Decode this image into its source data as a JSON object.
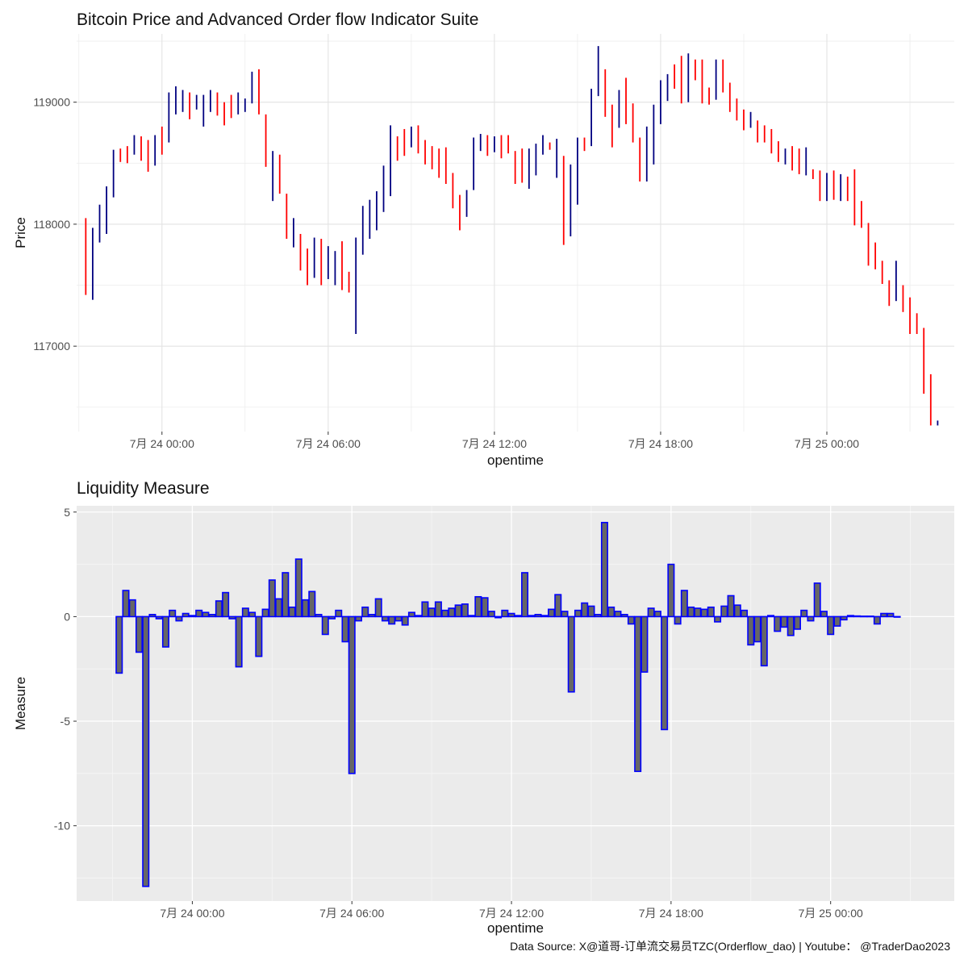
{
  "chart_data": [
    {
      "type": "ohlc",
      "title": "Bitcoin Price and Advanced Order flow Indicator Suite",
      "xlabel": "opentime",
      "ylabel": "Price",
      "x_tick_labels": [
        "7月 24 00:00",
        "7月 24 06:00",
        "7月 24 12:00",
        "7月 24 18:00",
        "7月 25 00:00"
      ],
      "x_tick_hours": [
        0,
        6,
        12,
        18,
        24
      ],
      "x_range_hours": [
        -3.08,
        28.6
      ],
      "bar_start_hours": -2.75,
      "bar_interval_hours": 0.25,
      "y_tick_labels": [
        "117000",
        "118000",
        "119000"
      ],
      "y_ticks": [
        117000,
        118000,
        119000
      ],
      "ylim": [
        116300,
        119560
      ],
      "grid": true,
      "colors": {
        "up": "#000080",
        "down": "#ff0000"
      },
      "bars": [
        {
          "high": 118050,
          "low": 117420,
          "dir": "down"
        },
        {
          "high": 117970,
          "low": 117380,
          "dir": "up"
        },
        {
          "high": 118160,
          "low": 117850,
          "dir": "up"
        },
        {
          "high": 118310,
          "low": 117920,
          "dir": "up"
        },
        {
          "high": 118610,
          "low": 118220,
          "dir": "up"
        },
        {
          "high": 118620,
          "low": 118510,
          "dir": "down"
        },
        {
          "high": 118640,
          "low": 118500,
          "dir": "down"
        },
        {
          "high": 118730,
          "low": 118570,
          "dir": "up"
        },
        {
          "high": 118720,
          "low": 118520,
          "dir": "down"
        },
        {
          "high": 118690,
          "low": 118430,
          "dir": "down"
        },
        {
          "high": 118730,
          "low": 118480,
          "dir": "up"
        },
        {
          "high": 118800,
          "low": 118570,
          "dir": "down"
        },
        {
          "high": 119080,
          "low": 118670,
          "dir": "up"
        },
        {
          "high": 119130,
          "low": 118900,
          "dir": "up"
        },
        {
          "high": 119100,
          "low": 118920,
          "dir": "up"
        },
        {
          "high": 119080,
          "low": 118860,
          "dir": "down"
        },
        {
          "high": 119060,
          "low": 118940,
          "dir": "up"
        },
        {
          "high": 119060,
          "low": 118800,
          "dir": "up"
        },
        {
          "high": 119100,
          "low": 118920,
          "dir": "up"
        },
        {
          "high": 119080,
          "low": 118890,
          "dir": "down"
        },
        {
          "high": 119000,
          "low": 118810,
          "dir": "down"
        },
        {
          "high": 119060,
          "low": 118870,
          "dir": "down"
        },
        {
          "high": 119080,
          "low": 118900,
          "dir": "up"
        },
        {
          "high": 119030,
          "low": 118920,
          "dir": "up"
        },
        {
          "high": 119250,
          "low": 118990,
          "dir": "up"
        },
        {
          "high": 119270,
          "low": 118900,
          "dir": "down"
        },
        {
          "high": 118900,
          "low": 118470,
          "dir": "down"
        },
        {
          "high": 118600,
          "low": 118190,
          "dir": "up"
        },
        {
          "high": 118570,
          "low": 118250,
          "dir": "down"
        },
        {
          "high": 118250,
          "low": 117880,
          "dir": "down"
        },
        {
          "high": 118050,
          "low": 117810,
          "dir": "up"
        },
        {
          "high": 117920,
          "low": 117620,
          "dir": "down"
        },
        {
          "high": 117800,
          "low": 117500,
          "dir": "down"
        },
        {
          "high": 117890,
          "low": 117560,
          "dir": "up"
        },
        {
          "high": 117880,
          "low": 117500,
          "dir": "down"
        },
        {
          "high": 117820,
          "low": 117550,
          "dir": "up"
        },
        {
          "high": 117780,
          "low": 117500,
          "dir": "up"
        },
        {
          "high": 117860,
          "low": 117460,
          "dir": "down"
        },
        {
          "high": 117610,
          "low": 117440,
          "dir": "down"
        },
        {
          "high": 117890,
          "low": 117100,
          "dir": "up"
        },
        {
          "high": 118150,
          "low": 117750,
          "dir": "up"
        },
        {
          "high": 118200,
          "low": 117880,
          "dir": "up"
        },
        {
          "high": 118270,
          "low": 117950,
          "dir": "up"
        },
        {
          "high": 118480,
          "low": 118100,
          "dir": "up"
        },
        {
          "high": 118810,
          "low": 118230,
          "dir": "up"
        },
        {
          "high": 118720,
          "low": 118520,
          "dir": "down"
        },
        {
          "high": 118780,
          "low": 118560,
          "dir": "down"
        },
        {
          "high": 118800,
          "low": 118630,
          "dir": "up"
        },
        {
          "high": 118810,
          "low": 118580,
          "dir": "down"
        },
        {
          "high": 118690,
          "low": 118490,
          "dir": "down"
        },
        {
          "high": 118640,
          "low": 118450,
          "dir": "down"
        },
        {
          "high": 118620,
          "low": 118380,
          "dir": "down"
        },
        {
          "high": 118630,
          "low": 118330,
          "dir": "down"
        },
        {
          "high": 118420,
          "low": 118130,
          "dir": "down"
        },
        {
          "high": 118240,
          "low": 117950,
          "dir": "down"
        },
        {
          "high": 118280,
          "low": 118060,
          "dir": "up"
        },
        {
          "high": 118710,
          "low": 118280,
          "dir": "up"
        },
        {
          "high": 118740,
          "low": 118600,
          "dir": "up"
        },
        {
          "high": 118730,
          "low": 118560,
          "dir": "down"
        },
        {
          "high": 118720,
          "low": 118590,
          "dir": "up"
        },
        {
          "high": 118730,
          "low": 118540,
          "dir": "down"
        },
        {
          "high": 118730,
          "low": 118580,
          "dir": "down"
        },
        {
          "high": 118600,
          "low": 118330,
          "dir": "down"
        },
        {
          "high": 118620,
          "low": 118340,
          "dir": "down"
        },
        {
          "high": 118620,
          "low": 118290,
          "dir": "up"
        },
        {
          "high": 118660,
          "low": 118400,
          "dir": "up"
        },
        {
          "high": 118730,
          "low": 118570,
          "dir": "up"
        },
        {
          "high": 118670,
          "low": 118610,
          "dir": "down"
        },
        {
          "high": 118700,
          "low": 118380,
          "dir": "up"
        },
        {
          "high": 118560,
          "low": 117830,
          "dir": "down"
        },
        {
          "high": 118490,
          "low": 117900,
          "dir": "up"
        },
        {
          "high": 118710,
          "low": 118160,
          "dir": "up"
        },
        {
          "high": 118710,
          "low": 118600,
          "dir": "down"
        },
        {
          "high": 119110,
          "low": 118640,
          "dir": "up"
        },
        {
          "high": 119460,
          "low": 119050,
          "dir": "up"
        },
        {
          "high": 119270,
          "low": 118880,
          "dir": "down"
        },
        {
          "high": 118980,
          "low": 118630,
          "dir": "down"
        },
        {
          "high": 119100,
          "low": 118790,
          "dir": "up"
        },
        {
          "high": 119200,
          "low": 118820,
          "dir": "down"
        },
        {
          "high": 118990,
          "low": 118670,
          "dir": "down"
        },
        {
          "high": 118710,
          "low": 118350,
          "dir": "down"
        },
        {
          "high": 118800,
          "low": 118350,
          "dir": "up"
        },
        {
          "high": 118980,
          "low": 118490,
          "dir": "up"
        },
        {
          "high": 119180,
          "low": 118820,
          "dir": "up"
        },
        {
          "high": 119230,
          "low": 119010,
          "dir": "up"
        },
        {
          "high": 119310,
          "low": 119110,
          "dir": "down"
        },
        {
          "high": 119380,
          "low": 118990,
          "dir": "down"
        },
        {
          "high": 119400,
          "low": 119000,
          "dir": "up"
        },
        {
          "high": 119350,
          "low": 119180,
          "dir": "down"
        },
        {
          "high": 119350,
          "low": 118990,
          "dir": "down"
        },
        {
          "high": 119120,
          "low": 118980,
          "dir": "down"
        },
        {
          "high": 119350,
          "low": 119020,
          "dir": "up"
        },
        {
          "high": 119350,
          "low": 119080,
          "dir": "down"
        },
        {
          "high": 119160,
          "low": 118920,
          "dir": "down"
        },
        {
          "high": 119030,
          "low": 118850,
          "dir": "down"
        },
        {
          "high": 118940,
          "low": 118770,
          "dir": "down"
        },
        {
          "high": 118920,
          "low": 118790,
          "dir": "up"
        },
        {
          "high": 118850,
          "low": 118670,
          "dir": "down"
        },
        {
          "high": 118810,
          "low": 118670,
          "dir": "down"
        },
        {
          "high": 118780,
          "low": 118580,
          "dir": "down"
        },
        {
          "high": 118680,
          "low": 118510,
          "dir": "down"
        },
        {
          "high": 118620,
          "low": 118490,
          "dir": "up"
        },
        {
          "high": 118640,
          "low": 118440,
          "dir": "down"
        },
        {
          "high": 118620,
          "low": 118410,
          "dir": "down"
        },
        {
          "high": 118630,
          "low": 118400,
          "dir": "up"
        },
        {
          "high": 118450,
          "low": 118370,
          "dir": "down"
        },
        {
          "high": 118440,
          "low": 118190,
          "dir": "down"
        },
        {
          "high": 118420,
          "low": 118190,
          "dir": "up"
        },
        {
          "high": 118440,
          "low": 118200,
          "dir": "down"
        },
        {
          "high": 118410,
          "low": 118190,
          "dir": "up"
        },
        {
          "high": 118390,
          "low": 118190,
          "dir": "down"
        },
        {
          "high": 118450,
          "low": 117990,
          "dir": "down"
        },
        {
          "high": 118190,
          "low": 117970,
          "dir": "down"
        },
        {
          "high": 118010,
          "low": 117660,
          "dir": "down"
        },
        {
          "high": 117850,
          "low": 117630,
          "dir": "down"
        },
        {
          "high": 117700,
          "low": 117510,
          "dir": "down"
        },
        {
          "high": 117540,
          "low": 117330,
          "dir": "down"
        },
        {
          "high": 117700,
          "low": 117370,
          "dir": "up"
        },
        {
          "high": 117500,
          "low": 117280,
          "dir": "down"
        },
        {
          "high": 117400,
          "low": 117100,
          "dir": "down"
        },
        {
          "high": 117270,
          "low": 117100,
          "dir": "down"
        },
        {
          "high": 117150,
          "low": 116610,
          "dir": "down"
        },
        {
          "high": 116770,
          "low": 116350,
          "dir": "down"
        },
        {
          "high": 116390,
          "low": 116350,
          "dir": "up"
        }
      ]
    },
    {
      "type": "bar",
      "title": "Liquidity Measure",
      "xlabel": "opentime",
      "ylabel": "Measure",
      "x_tick_labels": [
        "7月 24 00:00",
        "7月 24 06:00",
        "7月 24 12:00",
        "7月 24 18:00",
        "7月 25 00:00"
      ],
      "x_tick_hours": [
        0,
        6,
        12,
        18,
        24
      ],
      "x_range_hours": [
        -4.35,
        28.65
      ],
      "bar_start_hours": -2.75,
      "bar_interval_hours": 0.25,
      "y_tick_labels": [
        "-10",
        "-5",
        "0",
        "5"
      ],
      "y_ticks": [
        -10,
        -5,
        0,
        5
      ],
      "ylim": [
        -13.6,
        5.3
      ],
      "grid": true,
      "colors": {
        "fill": "#666666",
        "outline": "#0000ff",
        "background": "#ebebeb",
        "grid": "#ffffff"
      },
      "values": [
        -2.7,
        1.25,
        0.8,
        -1.7,
        -12.9,
        0.1,
        -0.1,
        -1.45,
        0.3,
        -0.2,
        0.15,
        0.05,
        0.3,
        0.2,
        0.1,
        0.75,
        1.15,
        -0.1,
        -2.4,
        0.4,
        0.2,
        -1.9,
        0.35,
        1.75,
        0.85,
        2.1,
        0.45,
        2.75,
        0.8,
        1.2,
        0.1,
        -0.85,
        -0.1,
        0.3,
        -1.2,
        -7.5,
        -0.2,
        0.45,
        0.1,
        0.85,
        -0.2,
        -0.35,
        -0.2,
        -0.4,
        0.2,
        0.05,
        0.7,
        0.4,
        0.7,
        0.3,
        0.4,
        0.55,
        0.6,
        0.05,
        0.95,
        0.9,
        0.25,
        -0.05,
        0.3,
        0.15,
        0.05,
        2.1,
        0.05,
        0.1,
        0.05,
        0.35,
        1.05,
        0.25,
        -3.6,
        0.3,
        0.65,
        0.5,
        0.1,
        4.5,
        0.45,
        0.25,
        0.1,
        -0.35,
        -7.4,
        -2.65,
        0.4,
        0.25,
        -5.4,
        2.5,
        -0.35,
        1.25,
        0.45,
        0.4,
        0.35,
        0.45,
        -0.25,
        0.5,
        1.0,
        0.55,
        0.3,
        -1.35,
        -1.2,
        -2.35,
        0.05,
        -0.7,
        -0.5,
        -0.9,
        -0.6,
        0.3,
        -0.2,
        1.6,
        0.25,
        -0.85,
        -0.45,
        -0.15,
        0.05,
        0.03,
        0.02,
        0.02,
        -0.35,
        0.15,
        0.15,
        0.0
      ]
    }
  ],
  "footer": "Data Source: X@道哥-订单流交易员TZC(Orderflow_dao) | Youtube： @TraderDao2023"
}
